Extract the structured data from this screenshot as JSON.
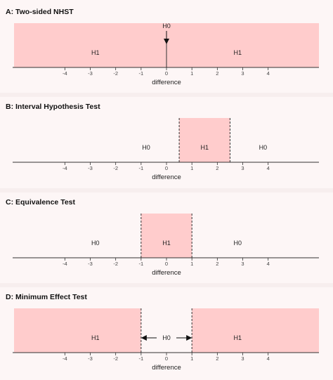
{
  "colors": {
    "background": "#fdf6f6",
    "panel_band": "#f7eeee",
    "h1_fill": "#ffcccc",
    "axis": "#333333",
    "dashed_boundary": "#333333"
  },
  "x_axis": {
    "title": "difference",
    "range": [
      -6,
      6
    ],
    "ticks": [
      -4,
      -3,
      -2,
      -1,
      0,
      1,
      2,
      3,
      4
    ],
    "tick_labels": [
      "-4",
      "-3",
      "-2",
      "-1",
      "0",
      "1",
      "2",
      "3",
      "4"
    ]
  },
  "panels": [
    {
      "id": "A",
      "title": "A: Two-sided NHST",
      "h1_regions": [
        [
          -6,
          0
        ],
        [
          0,
          6
        ]
      ],
      "boundaries": [
        0
      ],
      "boundary_style": "solid",
      "labels": [
        {
          "text": "H1",
          "x": -2.8,
          "row": "mid"
        },
        {
          "text": "H1",
          "x": 2.8,
          "row": "mid"
        },
        {
          "text": "H0",
          "x": 0,
          "row": "top"
        }
      ],
      "arrows": [
        {
          "type": "down",
          "x": 0
        }
      ]
    },
    {
      "id": "B",
      "title": "B: Interval Hypothesis Test",
      "h1_regions": [
        [
          0.5,
          2.5
        ]
      ],
      "boundaries": [
        0.5,
        2.5
      ],
      "boundary_style": "dashed",
      "labels": [
        {
          "text": "H0",
          "x": -0.8,
          "row": "mid"
        },
        {
          "text": "H1",
          "x": 1.5,
          "row": "mid"
        },
        {
          "text": "H0",
          "x": 3.8,
          "row": "mid"
        }
      ],
      "arrows": []
    },
    {
      "id": "C",
      "title": "C: Equivalence Test",
      "h1_regions": [
        [
          -1,
          1
        ]
      ],
      "boundaries": [
        -1,
        1
      ],
      "boundary_style": "dashed",
      "labels": [
        {
          "text": "H0",
          "x": -2.8,
          "row": "mid"
        },
        {
          "text": "H1",
          "x": 0,
          "row": "mid"
        },
        {
          "text": "H0",
          "x": 2.8,
          "row": "mid"
        }
      ],
      "arrows": []
    },
    {
      "id": "D",
      "title": "D: Minimum Effect Test",
      "h1_regions": [
        [
          -6,
          -1
        ],
        [
          1,
          6
        ]
      ],
      "boundaries": [
        -1,
        1
      ],
      "boundary_style": "dashed",
      "labels": [
        {
          "text": "H1",
          "x": -2.8,
          "row": "mid"
        },
        {
          "text": "H0",
          "x": 0,
          "row": "mid"
        },
        {
          "text": "H1",
          "x": 2.8,
          "row": "mid"
        }
      ],
      "arrows": [
        {
          "type": "double-out",
          "from": -1,
          "to": 1
        }
      ]
    }
  ]
}
